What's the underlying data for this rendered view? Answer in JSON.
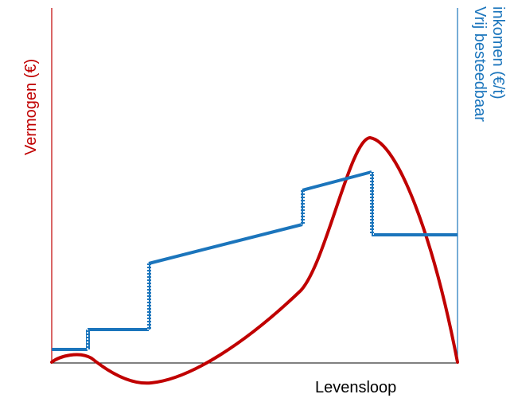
{
  "left_axis": {
    "label": "Vermogen (€)",
    "color": "#c00000"
  },
  "right_axis": {
    "label_line1": "Vrij besteedbaar",
    "label_line2": "inkomen (€/t)",
    "color": "#1b75bc"
  },
  "x_axis": {
    "label": "Levensloop"
  },
  "colors": {
    "wealth_curve": "#c00000",
    "income_steps": "#1b75bc",
    "baseline": "#000000"
  }
}
